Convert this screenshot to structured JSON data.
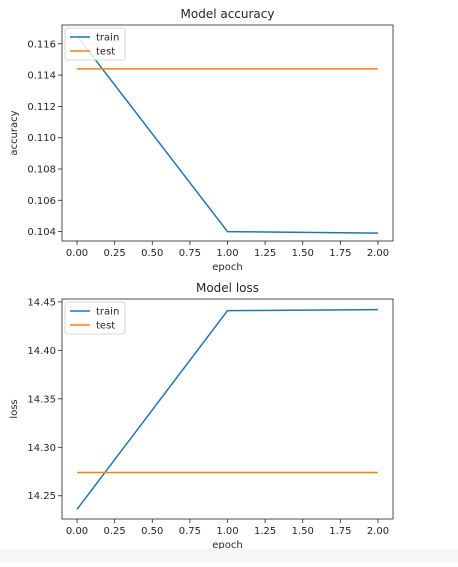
{
  "chart_data": [
    {
      "type": "line",
      "title": "Model accuracy",
      "xlabel": "epoch",
      "ylabel": "accuracy",
      "x": [
        0,
        1,
        2
      ],
      "xlim": [
        -0.1,
        2.1
      ],
      "ylim": [
        0.1034,
        0.1172
      ],
      "xticks": [
        "0.00",
        "0.25",
        "0.50",
        "0.75",
        "1.00",
        "1.25",
        "1.50",
        "1.75",
        "2.00"
      ],
      "yticks": [
        "0.104",
        "0.106",
        "0.108",
        "0.110",
        "0.112",
        "0.114",
        "0.116"
      ],
      "series": [
        {
          "name": "train",
          "color": "#1f77b4",
          "values": [
            0.1165,
            0.104,
            0.1039
          ]
        },
        {
          "name": "test",
          "color": "#ff7f0e",
          "values": [
            0.1144,
            0.1144,
            0.1144
          ]
        }
      ],
      "legend": "upper-left",
      "grid": false
    },
    {
      "type": "line",
      "title": "Model loss",
      "xlabel": "epoch",
      "ylabel": "loss",
      "x": [
        0,
        1,
        2
      ],
      "xlim": [
        -0.1,
        2.1
      ],
      "ylim": [
        14.226,
        14.453
      ],
      "xticks": [
        "0.00",
        "0.25",
        "0.50",
        "0.75",
        "1.00",
        "1.25",
        "1.50",
        "1.75",
        "2.00"
      ],
      "yticks": [
        "14.25",
        "14.30",
        "14.35",
        "14.40",
        "14.45"
      ],
      "series": [
        {
          "name": "train",
          "color": "#1f77b4",
          "values": [
            14.236,
            14.441,
            14.442
          ]
        },
        {
          "name": "test",
          "color": "#ff7f0e",
          "values": [
            14.274,
            14.274,
            14.274
          ]
        }
      ],
      "legend": "upper-left",
      "grid": false
    }
  ]
}
